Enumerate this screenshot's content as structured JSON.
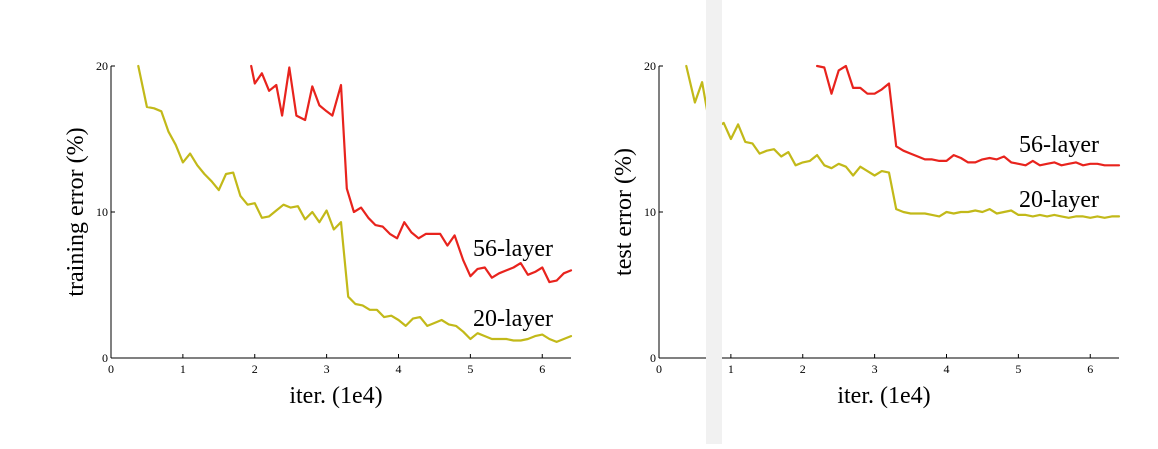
{
  "chart_data": [
    {
      "type": "line",
      "title": "",
      "xlabel": "iter. (1e4)",
      "ylabel": "training error (%)",
      "xlim": [
        0,
        6.4
      ],
      "ylim": [
        0,
        20
      ],
      "xticks": [
        "0",
        "1",
        "2",
        "3",
        "4",
        "5",
        "6"
      ],
      "yticks": [
        "0",
        "10",
        "20"
      ],
      "grid": false,
      "series": [
        {
          "name": "56-layer",
          "color": "#e8231d",
          "x": [
            1.95,
            2.0,
            2.1,
            2.2,
            2.3,
            2.38,
            2.48,
            2.58,
            2.7,
            2.8,
            2.9,
            3.0,
            3.08,
            3.2,
            3.28,
            3.38,
            3.48,
            3.58,
            3.68,
            3.78,
            3.88,
            3.98,
            4.08,
            4.18,
            4.28,
            4.38,
            4.48,
            4.58,
            4.68,
            4.78,
            4.9,
            5.0,
            5.1,
            5.2,
            5.3,
            5.4,
            5.5,
            5.6,
            5.7,
            5.8,
            5.9,
            6.0,
            6.1,
            6.2,
            6.3,
            6.4
          ],
          "y": [
            20,
            18.8,
            19.5,
            18.3,
            18.7,
            16.6,
            19.9,
            16.6,
            16.3,
            18.6,
            17.3,
            16.9,
            16.6,
            18.7,
            11.6,
            10.0,
            10.3,
            9.6,
            9.1,
            9.0,
            8.5,
            8.2,
            9.3,
            8.6,
            8.2,
            8.5,
            8.5,
            8.5,
            7.7,
            8.4,
            6.7,
            5.6,
            6.1,
            6.2,
            5.5,
            5.8,
            6.0,
            6.2,
            6.5,
            5.7,
            5.9,
            6.2,
            5.2,
            5.3,
            5.8,
            6.0
          ]
        },
        {
          "name": "20-layer",
          "color": "#c2b919",
          "x": [
            0.38,
            0.5,
            0.6,
            0.7,
            0.8,
            0.9,
            1.0,
            1.1,
            1.2,
            1.3,
            1.4,
            1.5,
            1.6,
            1.7,
            1.8,
            1.9,
            2.0,
            2.1,
            2.2,
            2.3,
            2.4,
            2.5,
            2.6,
            2.7,
            2.8,
            2.9,
            3.0,
            3.1,
            3.2,
            3.3,
            3.4,
            3.5,
            3.6,
            3.7,
            3.8,
            3.9,
            4.0,
            4.1,
            4.2,
            4.3,
            4.4,
            4.5,
            4.6,
            4.7,
            4.8,
            4.9,
            5.0,
            5.1,
            5.2,
            5.3,
            5.4,
            5.5,
            5.6,
            5.7,
            5.8,
            5.9,
            6.0,
            6.1,
            6.2,
            6.3,
            6.4
          ],
          "y": [
            20,
            17.2,
            17.1,
            16.9,
            15.5,
            14.6,
            13.4,
            14.0,
            13.2,
            12.6,
            12.1,
            11.5,
            12.6,
            12.7,
            11.1,
            10.5,
            10.6,
            9.6,
            9.7,
            10.1,
            10.5,
            10.3,
            10.4,
            9.5,
            10.0,
            9.3,
            10.1,
            8.8,
            9.3,
            4.2,
            3.7,
            3.6,
            3.3,
            3.3,
            2.8,
            2.9,
            2.6,
            2.2,
            2.7,
            2.8,
            2.2,
            2.4,
            2.6,
            2.3,
            2.2,
            1.8,
            1.3,
            1.7,
            1.5,
            1.3,
            1.3,
            1.3,
            1.2,
            1.2,
            1.3,
            1.5,
            1.6,
            1.3,
            1.1,
            1.3,
            1.5
          ]
        }
      ]
    },
    {
      "type": "line",
      "title": "",
      "xlabel": "iter. (1e4)",
      "ylabel": "test error (%)",
      "xlim": [
        0,
        6.4
      ],
      "ylim": [
        0,
        20
      ],
      "xticks": [
        "0",
        "1",
        "2",
        "3",
        "4",
        "5",
        "6"
      ],
      "yticks": [
        "0",
        "10",
        "20"
      ],
      "grid": false,
      "series": [
        {
          "name": "56-layer",
          "color": "#e8231d",
          "x": [
            2.2,
            2.3,
            2.4,
            2.5,
            2.6,
            2.7,
            2.8,
            2.9,
            3.0,
            3.1,
            3.2,
            3.3,
            3.4,
            3.5,
            3.6,
            3.7,
            3.8,
            3.9,
            4.0,
            4.1,
            4.2,
            4.3,
            4.4,
            4.5,
            4.6,
            4.7,
            4.8,
            4.9,
            5.0,
            5.1,
            5.2,
            5.3,
            5.4,
            5.5,
            5.6,
            5.7,
            5.8,
            5.9,
            6.0,
            6.1,
            6.2,
            6.3,
            6.4
          ],
          "y": [
            20,
            19.9,
            18.1,
            19.7,
            20,
            18.5,
            18.5,
            18.1,
            18.1,
            18.4,
            18.8,
            14.5,
            14.2,
            14.0,
            13.8,
            13.6,
            13.6,
            13.5,
            13.5,
            13.9,
            13.7,
            13.4,
            13.4,
            13.6,
            13.7,
            13.6,
            13.8,
            13.4,
            13.3,
            13.2,
            13.5,
            13.2,
            13.3,
            13.4,
            13.2,
            13.3,
            13.4,
            13.2,
            13.3,
            13.3,
            13.2,
            13.2,
            13.2
          ]
        },
        {
          "name": "20-layer",
          "color": "#c2b919",
          "x": [
            0.38,
            0.5,
            0.6,
            0.7,
            0.8,
            0.9,
            1.0,
            1.1,
            1.2,
            1.3,
            1.4,
            1.5,
            1.6,
            1.7,
            1.8,
            1.9,
            2.0,
            2.1,
            2.2,
            2.3,
            2.4,
            2.5,
            2.6,
            2.7,
            2.8,
            2.9,
            3.0,
            3.1,
            3.2,
            3.3,
            3.4,
            3.5,
            3.6,
            3.7,
            3.8,
            3.9,
            4.0,
            4.1,
            4.2,
            4.3,
            4.4,
            4.5,
            4.6,
            4.7,
            4.8,
            4.9,
            5.0,
            5.1,
            5.2,
            5.3,
            5.4,
            5.5,
            5.6,
            5.7,
            5.8,
            5.9,
            6.0,
            6.1,
            6.2,
            6.3,
            6.4
          ],
          "y": [
            20,
            17.5,
            18.9,
            16.1,
            15.8,
            16.1,
            15.0,
            16.0,
            14.8,
            14.7,
            14.0,
            14.2,
            14.3,
            13.8,
            14.1,
            13.2,
            13.4,
            13.5,
            13.9,
            13.2,
            13.0,
            13.3,
            13.1,
            12.5,
            13.1,
            12.8,
            12.5,
            12.8,
            12.7,
            10.2,
            10.0,
            9.9,
            9.9,
            9.9,
            9.8,
            9.7,
            10.0,
            9.9,
            10.0,
            10.0,
            10.1,
            10.0,
            10.2,
            9.9,
            10.0,
            10.1,
            9.8,
            9.8,
            9.7,
            9.8,
            9.7,
            9.8,
            9.7,
            9.6,
            9.7,
            9.7,
            9.6,
            9.7,
            9.6,
            9.7,
            9.7
          ]
        }
      ]
    }
  ]
}
